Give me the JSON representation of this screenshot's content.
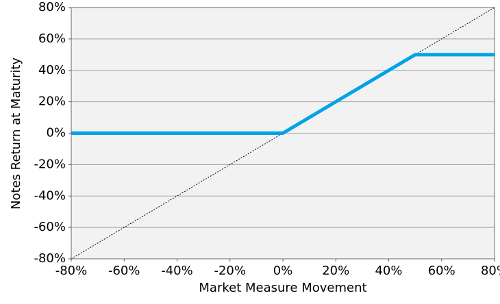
{
  "chart_data": {
    "type": "line",
    "x_label": "Market Measure Movement",
    "y_label": "Notes Return at Maturity",
    "xlim": [
      -80,
      80
    ],
    "ylim": [
      -80,
      80
    ],
    "xticks": [
      {
        "value": -80,
        "label": "-80%"
      },
      {
        "value": -60,
        "label": "-60%"
      },
      {
        "value": -40,
        "label": "-40%"
      },
      {
        "value": -20,
        "label": "-20%"
      },
      {
        "value": 0,
        "label": "0%"
      },
      {
        "value": 20,
        "label": "20%"
      },
      {
        "value": 40,
        "label": "40%"
      },
      {
        "value": 60,
        "label": "60%"
      },
      {
        "value": 80,
        "label": "80%"
      }
    ],
    "yticks": [
      {
        "value": -80,
        "label": "-80%"
      },
      {
        "value": -60,
        "label": "-60%"
      },
      {
        "value": -40,
        "label": "-40%"
      },
      {
        "value": -20,
        "label": "-20%"
      },
      {
        "value": 0,
        "label": "0%"
      },
      {
        "value": 20,
        "label": "20%"
      },
      {
        "value": 40,
        "label": "40%"
      },
      {
        "value": 60,
        "label": "60%"
      },
      {
        "value": 80,
        "label": "80%"
      }
    ],
    "grid": true,
    "background": "#f2f2f2",
    "series": [
      {
        "color": "#00a2e8",
        "style": "solid",
        "x": [
          -80,
          0,
          50,
          80
        ],
        "values": [
          0,
          0,
          50,
          50
        ]
      },
      {
        "color": "#000000",
        "style": "dotted",
        "x": [
          -80,
          80
        ],
        "values": [
          -80,
          80
        ]
      }
    ]
  }
}
